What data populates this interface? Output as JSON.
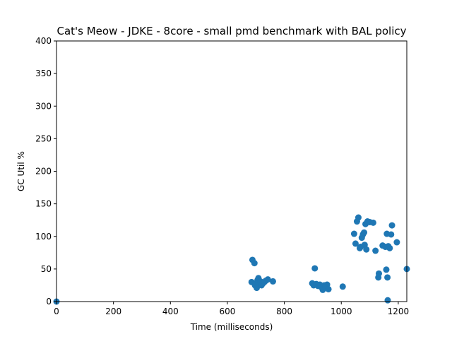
{
  "chart_data": {
    "type": "scatter",
    "title": "Cat's Meow - JDKE - 8core -  small pmd benchmark with BAL policy",
    "xlabel": "Time (milliseconds)",
    "ylabel": "GC Util %",
    "xlim": [
      0,
      1230
    ],
    "ylim": [
      0,
      400
    ],
    "x_ticks": [
      0,
      200,
      400,
      600,
      800,
      1000,
      1200
    ],
    "y_ticks": [
      0,
      50,
      100,
      150,
      200,
      250,
      300,
      350,
      400
    ],
    "grid": false,
    "marker_color": "#1f77b4",
    "points": [
      [
        0,
        0
      ],
      [
        685,
        30
      ],
      [
        688,
        64
      ],
      [
        695,
        59
      ],
      [
        697,
        25
      ],
      [
        700,
        28
      ],
      [
        703,
        21
      ],
      [
        706,
        33
      ],
      [
        709,
        36
      ],
      [
        712,
        29
      ],
      [
        716,
        31
      ],
      [
        720,
        25
      ],
      [
        725,
        28
      ],
      [
        730,
        30
      ],
      [
        735,
        32
      ],
      [
        742,
        34
      ],
      [
        760,
        31
      ],
      [
        898,
        28
      ],
      [
        903,
        25
      ],
      [
        907,
        51
      ],
      [
        912,
        27
      ],
      [
        918,
        24
      ],
      [
        925,
        26
      ],
      [
        930,
        22
      ],
      [
        935,
        18
      ],
      [
        940,
        25
      ],
      [
        945,
        23
      ],
      [
        950,
        26
      ],
      [
        955,
        19
      ],
      [
        1005,
        23
      ],
      [
        1045,
        104
      ],
      [
        1050,
        89
      ],
      [
        1055,
        123
      ],
      [
        1060,
        129
      ],
      [
        1065,
        82
      ],
      [
        1068,
        84
      ],
      [
        1072,
        98
      ],
      [
        1076,
        103
      ],
      [
        1080,
        106
      ],
      [
        1082,
        87
      ],
      [
        1085,
        119
      ],
      [
        1088,
        80
      ],
      [
        1092,
        123
      ],
      [
        1100,
        122
      ],
      [
        1112,
        121
      ],
      [
        1120,
        78
      ],
      [
        1130,
        37
      ],
      [
        1132,
        43
      ],
      [
        1145,
        86
      ],
      [
        1155,
        84
      ],
      [
        1158,
        49
      ],
      [
        1160,
        104
      ],
      [
        1162,
        37
      ],
      [
        1163,
        2
      ],
      [
        1165,
        85
      ],
      [
        1170,
        82
      ],
      [
        1175,
        103
      ],
      [
        1178,
        117
      ],
      [
        1195,
        91
      ],
      [
        1230,
        50
      ]
    ]
  }
}
